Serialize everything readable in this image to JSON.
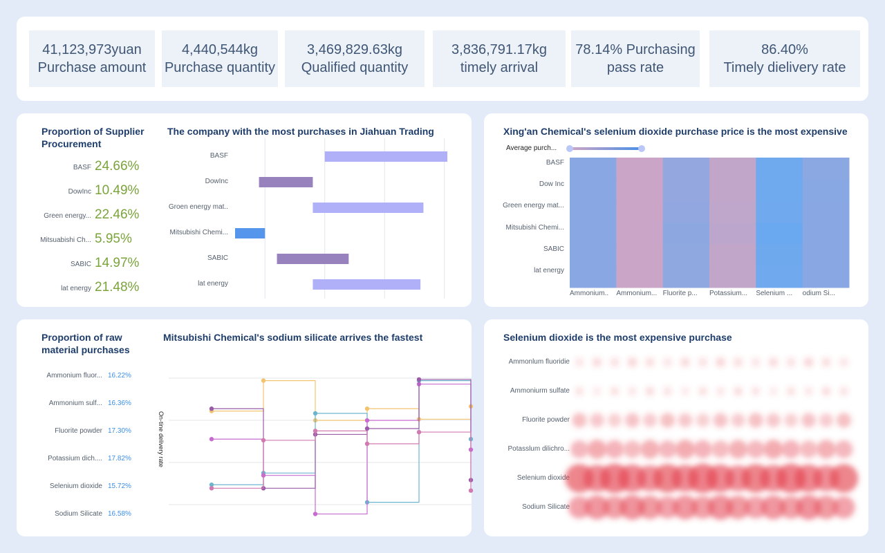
{
  "kpis": [
    {
      "value": "41,123,973yuan",
      "label": "Purchase amount"
    },
    {
      "value": "4,440,544kg",
      "label": "Purchase quantity"
    },
    {
      "value": "3,469,829.63kg",
      "label": "Qualified quantity"
    },
    {
      "value": "3,836,791.17kg",
      "label": "timely arrival"
    },
    {
      "value": "78.14% Purchasing",
      "label": "pass rate"
    },
    {
      "value": "86.40%",
      "label": "Timely dielivery rate"
    }
  ],
  "supplier_panel": {
    "prop_title": "Proportion of Supplier Procurement",
    "items": [
      {
        "label": "BASF",
        "value": "24.66%"
      },
      {
        "label": "DowInc",
        "value": "10.49%"
      },
      {
        "label": "Green energy...",
        "value": "22.46%"
      },
      {
        "label": "Mitsuabishi Ch...",
        "value": "5.95%"
      },
      {
        "label": "SABIC",
        "value": "14.97%"
      },
      {
        "label": "lat energy",
        "value": "21.48%"
      }
    ],
    "chart_title": "The company with the most purchases in Jiahuan Trading"
  },
  "heatmap_panel": {
    "title": "Xing'an Chemical's selenium dioxide purchase price is the most expensive",
    "legend_label": "Average purch..."
  },
  "material_panel": {
    "prop_title": "Proportion of raw material purchases",
    "items": [
      {
        "label": "Ammonium fluor...",
        "value": "16.22%"
      },
      {
        "label": "Ammonium sulf...",
        "value": "16.36%"
      },
      {
        "label": "Fluorite powder",
        "value": "17.30%"
      },
      {
        "label": "Potassium dich....",
        "value": "17.82%"
      },
      {
        "label": "Selenium dioxide",
        "value": "15.72%"
      },
      {
        "label": "Sodium Silicate",
        "value": "16.58%"
      }
    ],
    "chart_title": "Mitsubishi Chemical's sodium silicate arrives the fastest",
    "ylabel": "On-tine delivery rate"
  },
  "bubble_panel": {
    "title": "Selenium dioxide is the most expensive purchase"
  },
  "chart_data": [
    {
      "type": "bar",
      "orientation": "horizontal-floating",
      "categories": [
        "BASF",
        "DowInc",
        "Groen energy mat..",
        "Mitsubishi Chemi...",
        "SABIC",
        "lat energy"
      ],
      "ranges": [
        [
          1.0,
          3.05
        ],
        [
          -0.1,
          0.8
        ],
        [
          0.8,
          2.65
        ],
        [
          -0.5,
          0.0
        ],
        [
          0.2,
          1.4
        ],
        [
          0.8,
          2.6
        ]
      ],
      "colors": [
        "#b0b0f8",
        "#9782bd",
        "#b0b0f8",
        "#5595ec",
        "#9782bd",
        "#b0b0f8"
      ],
      "grid": true
    },
    {
      "type": "heatmap",
      "rows": [
        "BASF",
        "Dow Inc",
        "Green energy mat...",
        "Mitsubishi Chemi...",
        "SABIC",
        "lat energy"
      ],
      "columns": [
        "Ammonium..",
        "Ammonium...",
        "Fluorite p...",
        "Potassium...",
        "Selenium ...",
        "odium Si..."
      ],
      "values": [
        [
          0.3,
          0.92,
          0.4,
          0.85,
          0.05,
          0.32
        ],
        [
          0.3,
          0.92,
          0.4,
          0.85,
          0.05,
          0.28
        ],
        [
          0.3,
          0.92,
          0.38,
          0.82,
          0.06,
          0.3
        ],
        [
          0.3,
          0.92,
          0.34,
          0.8,
          0.0,
          0.3
        ],
        [
          0.3,
          0.92,
          0.36,
          0.84,
          0.04,
          0.3
        ],
        [
          0.3,
          0.92,
          0.36,
          0.84,
          0.06,
          0.3
        ]
      ],
      "color_low": "#6aa9f0",
      "color_high": "#d2a5c3"
    },
    {
      "type": "line",
      "step": true,
      "x": [
        0,
        1,
        2,
        3,
        4,
        5
      ],
      "series": [
        {
          "color": "#f2c470",
          "values": [
            0.68,
            0.94,
            0.6,
            0.7,
            0.61,
            0.72
          ]
        },
        {
          "color": "#6db5cf",
          "values": [
            0.05,
            0.15,
            0.66,
            -0.1,
            0.94,
            0.44
          ]
        },
        {
          "color": "#c86bd0",
          "values": [
            0.44,
            0.13,
            -0.2,
            0.6,
            0.91,
            0.35
          ]
        },
        {
          "color": "#9a5ba8",
          "values": [
            0.7,
            0.02,
            0.48,
            0.53,
            0.95,
            0.09
          ]
        },
        {
          "color": "#d07ab0",
          "values": [
            0.02,
            0.43,
            0.51,
            0.4,
            0.5,
            0.0
          ]
        }
      ],
      "grid": true
    },
    {
      "type": "scatter",
      "rows": [
        "Ammonlum fluoridie",
        "Ammoniurm sulfate",
        "Fluorite powder",
        "Potasslum dilichro...",
        "Selenium dioxide",
        "Sodium Silicate"
      ],
      "columns": 16,
      "intensity": [
        0.12,
        0.08,
        0.35,
        0.55,
        1.0,
        0.8
      ],
      "color": "#e3414f"
    }
  ]
}
